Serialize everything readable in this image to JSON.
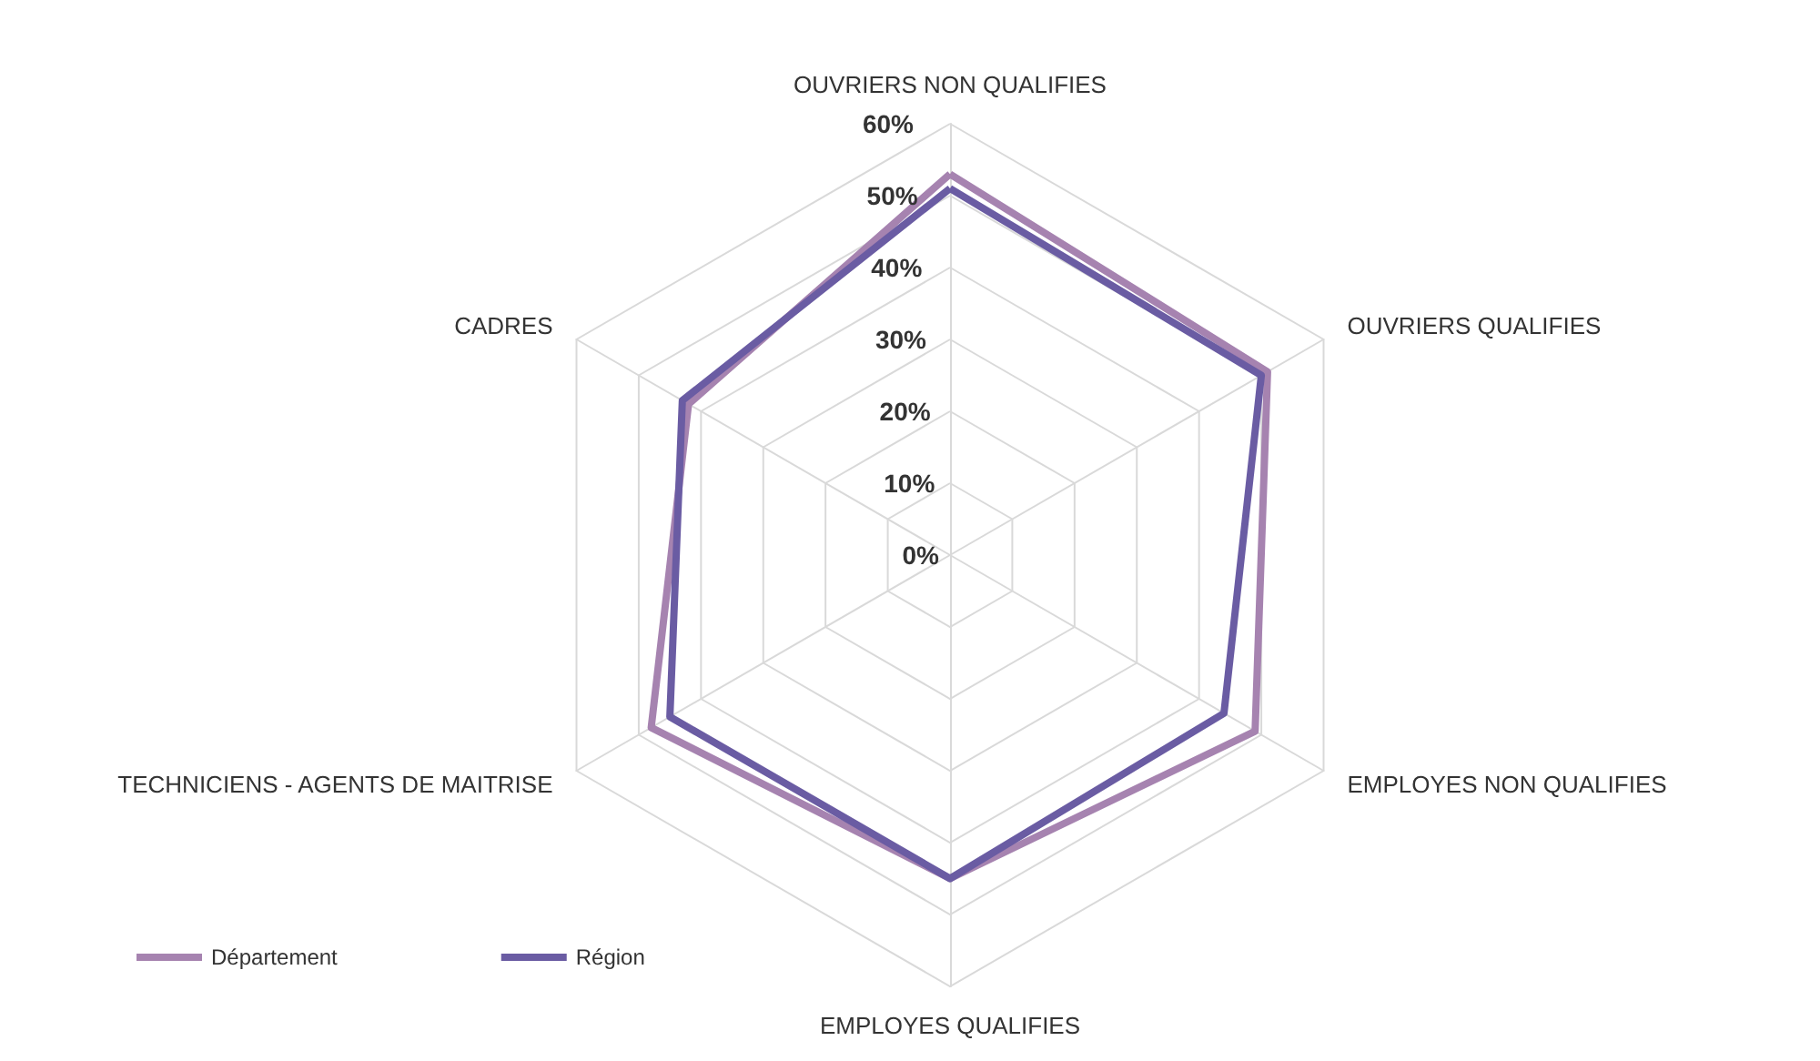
{
  "chart_data": {
    "type": "radar",
    "categories": [
      "OUVRIERS NON QUALIFIES",
      "OUVRIERS QUALIFIES",
      "EMPLOYES NON QUALIFIES",
      "EMPLOYES QUALIFIES",
      "TECHNICIENS - AGENTS DE MAITRISE",
      "CADRES"
    ],
    "series": [
      {
        "name": "Département",
        "color": "#a683b0",
        "values": [
          53,
          51,
          49,
          45,
          48,
          42
        ]
      },
      {
        "name": "Région",
        "color": "#6a5ca3",
        "values": [
          51,
          50,
          44,
          45,
          45,
          43
        ]
      }
    ],
    "ylim": [
      0,
      60
    ],
    "yticks": [
      {
        "value": 0,
        "label": "0%"
      },
      {
        "value": 10,
        "label": "10%"
      },
      {
        "value": 20,
        "label": "20%"
      },
      {
        "value": 30,
        "label": "30%"
      },
      {
        "value": 40,
        "label": "40%"
      },
      {
        "value": 50,
        "label": "50%"
      },
      {
        "value": 60,
        "label": "60%"
      }
    ],
    "grid": true,
    "legend": "bottom left",
    "marker": "none",
    "line_style": "solid"
  }
}
